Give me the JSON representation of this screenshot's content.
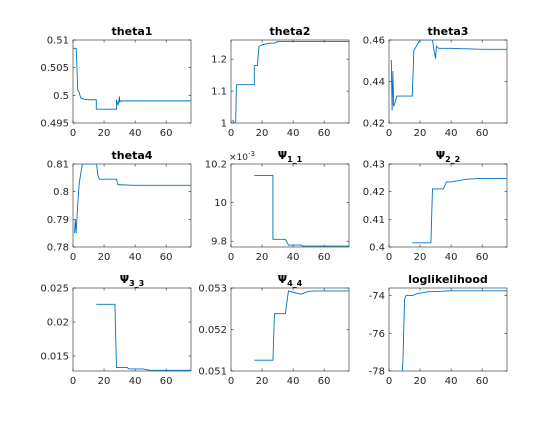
{
  "figure": {
    "background": "#ffffff",
    "line_color": "#0072bd",
    "axis_color": "#262626"
  },
  "chart_data": [
    {
      "type": "line",
      "title": "theta1",
      "title_base": "",
      "title_sub": "",
      "exponent": "",
      "xlim": [
        0,
        76
      ],
      "ylim": [
        0.495,
        0.51
      ],
      "xticks": [
        0,
        20,
        40,
        60
      ],
      "xtick_labels": [
        "0",
        "20",
        "40",
        "60"
      ],
      "yticks": [
        0.495,
        0.5,
        0.505,
        0.51
      ],
      "ytick_labels": [
        "0.495",
        "0.5",
        "0.505",
        "0.51"
      ],
      "series": [
        {
          "x": [
            0,
            2,
            2.5,
            3,
            4,
            5,
            7,
            10,
            15,
            15,
            28,
            28,
            29,
            30,
            30,
            31,
            35,
            76
          ],
          "y": [
            0.5085,
            0.5085,
            0.5055,
            0.501,
            0.5005,
            0.4995,
            0.4993,
            0.4992,
            0.4992,
            0.4975,
            0.4975,
            0.4992,
            0.4982,
            0.4998,
            0.4988,
            0.499,
            0.499,
            0.499
          ]
        }
      ]
    },
    {
      "type": "line",
      "title": "theta2",
      "title_base": "",
      "title_sub": "",
      "exponent": "",
      "xlim": [
        0,
        76
      ],
      "ylim": [
        1,
        1.26
      ],
      "xticks": [
        0,
        20,
        40,
        60
      ],
      "xtick_labels": [
        "0",
        "20",
        "40",
        "60"
      ],
      "yticks": [
        1,
        1.1,
        1.2
      ],
      "ytick_labels": [
        "1",
        "1.1",
        "1.2"
      ],
      "series": [
        {
          "x": [
            1,
            2,
            3,
            3.5,
            4,
            15,
            15,
            17,
            18,
            20,
            25,
            28,
            30,
            76
          ],
          "y": [
            1.01,
            1.0,
            1.0,
            1.12,
            1.12,
            1.12,
            1.18,
            1.18,
            1.24,
            1.245,
            1.25,
            1.25,
            1.255,
            1.255
          ]
        }
      ]
    },
    {
      "type": "line",
      "title": "theta3",
      "title_base": "",
      "title_sub": "",
      "exponent": "",
      "xlim": [
        0,
        76
      ],
      "ylim": [
        0.42,
        0.46
      ],
      "xticks": [
        0,
        20,
        40,
        60
      ],
      "xtick_labels": [
        "0",
        "20",
        "40",
        "60"
      ],
      "yticks": [
        0.42,
        0.44,
        0.46
      ],
      "ytick_labels": [
        "0.42",
        "0.44",
        "0.46"
      ],
      "series": [
        {
          "x": [
            1,
            1.5,
            2,
            2.5,
            3,
            4,
            5,
            15,
            16,
            20,
            28,
            29,
            30,
            30.5,
            32,
            40,
            60,
            76
          ],
          "y": [
            0.45,
            0.45,
            0.426,
            0.445,
            0.428,
            0.43,
            0.433,
            0.433,
            0.455,
            0.46,
            0.46,
            0.455,
            0.451,
            0.457,
            0.456,
            0.456,
            0.4555,
            0.4555
          ]
        }
      ]
    },
    {
      "type": "line",
      "title": "theta4",
      "title_base": "",
      "title_sub": "",
      "exponent": "",
      "xlim": [
        0,
        76
      ],
      "ylim": [
        0.78,
        0.81
      ],
      "xticks": [
        0,
        20,
        40,
        60
      ],
      "xtick_labels": [
        "0",
        "20",
        "40",
        "60"
      ],
      "yticks": [
        0.78,
        0.79,
        0.8,
        0.81
      ],
      "ytick_labels": [
        "0.78",
        "0.79",
        "0.8",
        "0.81"
      ],
      "series": [
        {
          "x": [
            1,
            1.5,
            2,
            3,
            4,
            6,
            8,
            14,
            15,
            16,
            17,
            28,
            29,
            30,
            40,
            60,
            76
          ],
          "y": [
            0.785,
            0.79,
            0.785,
            0.795,
            0.803,
            0.81,
            0.81,
            0.81,
            0.811,
            0.806,
            0.8045,
            0.8045,
            0.8025,
            0.8025,
            0.8023,
            0.8023,
            0.8023
          ]
        }
      ]
    },
    {
      "type": "line",
      "title": "",
      "title_base": "Ψ",
      "title_sub": "1_1",
      "exponent": "×10",
      "exponent_power": "-3",
      "xlim": [
        0,
        76
      ],
      "ylim": [
        9.77,
        10.2
      ],
      "xticks": [
        0,
        20,
        40,
        60
      ],
      "xtick_labels": [
        "0",
        "20",
        "40",
        "60"
      ],
      "yticks": [
        9.8,
        10,
        10.2
      ],
      "ytick_labels": [
        "9.8",
        "10",
        "10.2"
      ],
      "series": [
        {
          "x": [
            15,
            27,
            27,
            28,
            35,
            37,
            45,
            46,
            76
          ],
          "y": [
            10.14,
            10.14,
            9.81,
            9.81,
            9.81,
            9.78,
            9.78,
            9.775,
            9.775
          ]
        }
      ]
    },
    {
      "type": "line",
      "title": "",
      "title_base": "Ψ",
      "title_sub": "2_2",
      "exponent": "",
      "xlim": [
        0,
        76
      ],
      "ylim": [
        0.4,
        0.43
      ],
      "xticks": [
        0,
        20,
        40,
        60
      ],
      "xtick_labels": [
        "0",
        "20",
        "40",
        "60"
      ],
      "yticks": [
        0.4,
        0.41,
        0.42,
        0.43
      ],
      "ytick_labels": [
        "0.4",
        "0.41",
        "0.42",
        "0.43"
      ],
      "series": [
        {
          "x": [
            15,
            27,
            28,
            35,
            37,
            40,
            45,
            50,
            60,
            76
          ],
          "y": [
            0.4015,
            0.4015,
            0.421,
            0.421,
            0.4235,
            0.4235,
            0.424,
            0.4245,
            0.4248,
            0.4248
          ]
        }
      ]
    },
    {
      "type": "line",
      "title": "",
      "title_base": "Ψ",
      "title_sub": "3_3",
      "exponent": "",
      "xlim": [
        0,
        76
      ],
      "ylim": [
        0.0128,
        0.025
      ],
      "xticks": [
        0,
        20,
        40,
        60
      ],
      "xtick_labels": [
        "0",
        "20",
        "40",
        "60"
      ],
      "yticks": [
        0.015,
        0.02,
        0.025
      ],
      "ytick_labels": [
        "0.015",
        "0.02",
        "0.025"
      ],
      "series": [
        {
          "x": [
            15,
            27,
            28,
            35,
            36,
            45,
            50,
            76
          ],
          "y": [
            0.0226,
            0.0226,
            0.0133,
            0.0133,
            0.0131,
            0.0131,
            0.0129,
            0.0129
          ]
        }
      ]
    },
    {
      "type": "line",
      "title": "",
      "title_base": "Ψ",
      "title_sub": "4_4",
      "exponent": "",
      "xlim": [
        0,
        76
      ],
      "ylim": [
        0.051,
        0.053
      ],
      "xticks": [
        0,
        20,
        40,
        60
      ],
      "xtick_labels": [
        "0",
        "20",
        "40",
        "60"
      ],
      "yticks": [
        0.051,
        0.052,
        0.053
      ],
      "ytick_labels": [
        "0.051",
        "0.052",
        "0.053"
      ],
      "series": [
        {
          "x": [
            15,
            27,
            28,
            35,
            37,
            45,
            50,
            55,
            76
          ],
          "y": [
            0.05126,
            0.05126,
            0.05238,
            0.05238,
            0.05293,
            0.05285,
            0.05292,
            0.05293,
            0.05293
          ]
        }
      ]
    },
    {
      "type": "line",
      "title": "loglikelihood",
      "title_base": "",
      "title_sub": "",
      "exponent": "",
      "xlim": [
        0,
        76
      ],
      "ylim": [
        -78,
        -73.6
      ],
      "xticks": [
        0,
        20,
        40,
        60
      ],
      "xtick_labels": [
        "0",
        "20",
        "40",
        "60"
      ],
      "yticks": [
        -78,
        -76,
        -74
      ],
      "ytick_labels": [
        "-78",
        "-76",
        "-74"
      ],
      "series": [
        {
          "x": [
            8,
            9,
            10,
            11,
            12,
            15,
            18,
            25,
            40,
            76
          ],
          "y": [
            -79,
            -77.4,
            -74.2,
            -74.0,
            -74.0,
            -74.0,
            -73.9,
            -73.8,
            -73.75,
            -73.75
          ]
        }
      ]
    }
  ]
}
